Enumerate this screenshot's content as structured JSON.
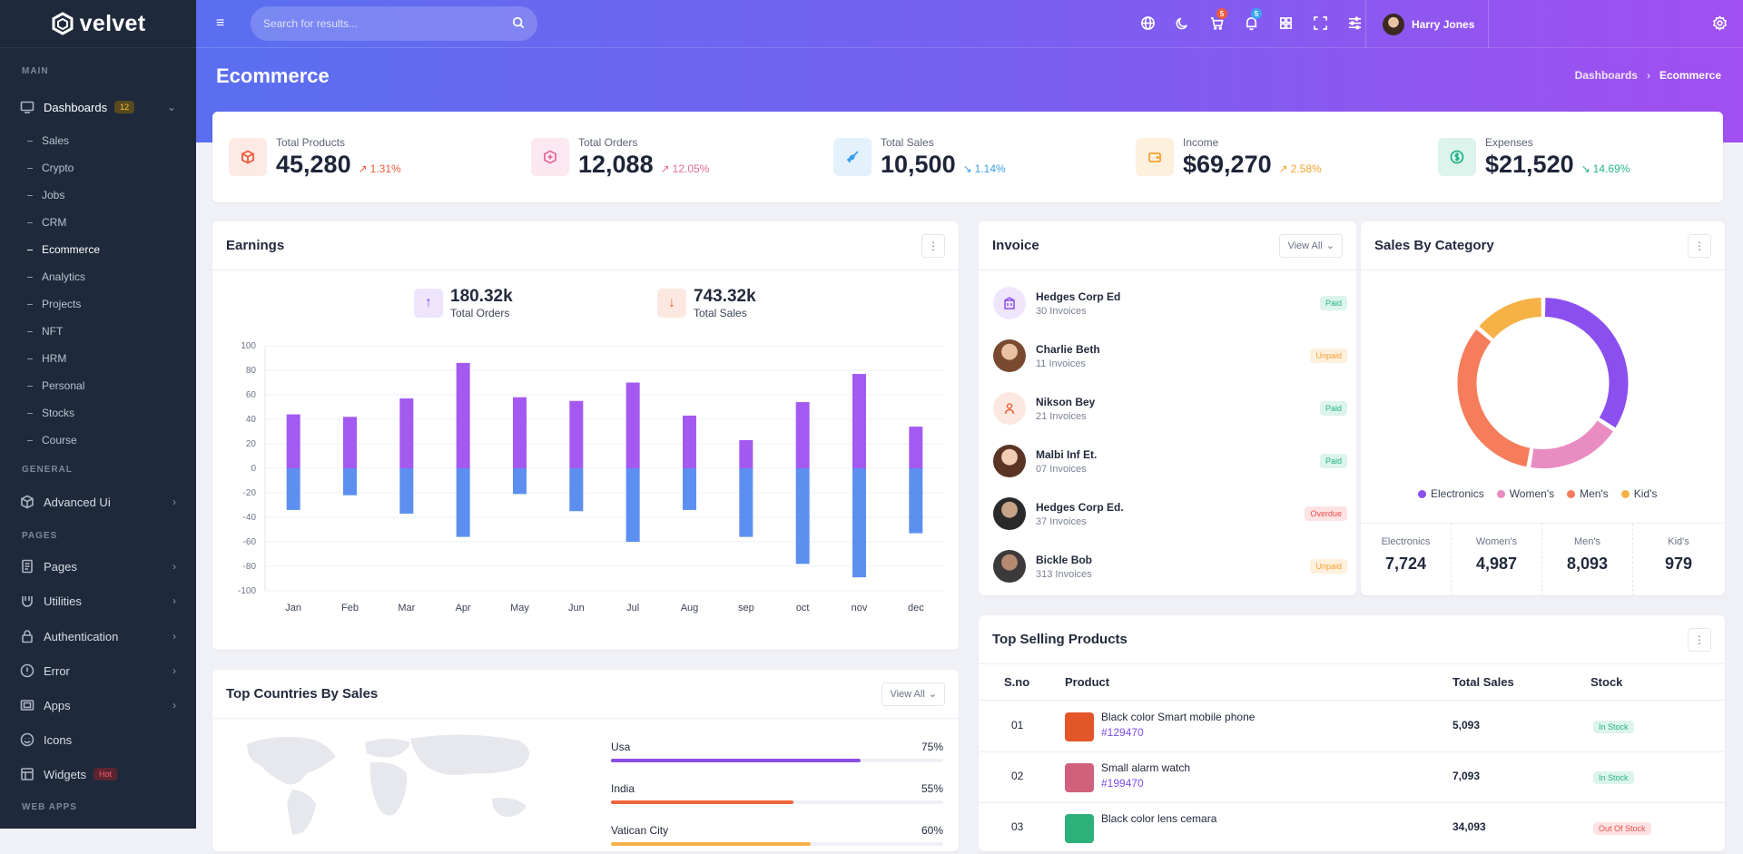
{
  "brand": {
    "name": "velvet"
  },
  "sidebar": {
    "sections": {
      "main": "MAIN",
      "general": "GENERAL",
      "pages": "PAGES",
      "webapps": "WEB APPS"
    },
    "dashboards": {
      "label": "Dashboards",
      "badge": "12"
    },
    "dashboard_subs": [
      "Sales",
      "Crypto",
      "Jobs",
      "CRM",
      "Ecommerce",
      "Analytics",
      "Projects",
      "NFT",
      "HRM",
      "Personal",
      "Stocks",
      "Course"
    ],
    "active_sub": "Ecommerce",
    "general_items": [
      {
        "label": "Advanced Ui",
        "icon": "cube-icon"
      }
    ],
    "page_items": [
      {
        "label": "Pages",
        "icon": "page-icon"
      },
      {
        "label": "Utilities",
        "icon": "utilities-icon"
      },
      {
        "label": "Authentication",
        "icon": "lock-icon"
      },
      {
        "label": "Error",
        "icon": "error-icon"
      },
      {
        "label": "Apps",
        "icon": "apps-icon"
      },
      {
        "label": "Icons",
        "icon": "smile-icon"
      },
      {
        "label": "Widgets",
        "icon": "widgets-icon",
        "badge": "Hot"
      }
    ]
  },
  "header": {
    "search_placeholder": "Search for results...",
    "cart_count": "5",
    "notif_count": "5",
    "user_name": "Harry Jones"
  },
  "page": {
    "title": "Ecommerce",
    "breadcrumb": [
      "Dashboards",
      "Ecommerce"
    ]
  },
  "stats": [
    {
      "label": "Total Products",
      "value": "45,280",
      "change": "1.31%",
      "trend": "up",
      "color": "#f15a3c",
      "icon": "box-icon"
    },
    {
      "label": "Total Orders",
      "value": "12,088",
      "change": "12.05%",
      "trend": "up",
      "color": "#e5699b",
      "icon": "box-plus-icon"
    },
    {
      "label": "Total Sales",
      "value": "10,500",
      "change": "1.14%",
      "trend": "down",
      "color": "#3a9ee8",
      "icon": "rocket-icon"
    },
    {
      "label": "Income",
      "value": "$69,270",
      "change": "2.58%",
      "trend": "up",
      "color": "#f4a230",
      "icon": "wallet-icon"
    },
    {
      "label": "Expenses",
      "value": "$21,520",
      "change": "14.69%",
      "trend": "down",
      "color": "#26b38b",
      "icon": "dollar-icon"
    }
  ],
  "earnings": {
    "title": "Earnings",
    "orders": {
      "value": "180.32k",
      "label": "Total Orders"
    },
    "sales": {
      "value": "743.32k",
      "label": "Total Sales"
    }
  },
  "chart_data": {
    "type": "bar",
    "categories": [
      "Jan",
      "Feb",
      "Mar",
      "Apr",
      "May",
      "Jun",
      "Jul",
      "Aug",
      "sep",
      "oct",
      "nov",
      "dec"
    ],
    "series": [
      {
        "values": [
          44,
          42,
          57,
          86,
          58,
          55,
          70,
          43,
          23,
          54,
          77,
          34
        ],
        "color": "#a45af0"
      },
      {
        "values": [
          -34,
          -22,
          -37,
          -56,
          -21,
          -35,
          -60,
          -34,
          -56,
          -78,
          -89,
          -53
        ],
        "color": "#5d8ff0"
      }
    ],
    "yticks": [
      "100",
      "80",
      "60",
      "40",
      "20",
      "0",
      "-20",
      "-40",
      "-60",
      "-80",
      "-100"
    ],
    "ylim": [
      -100,
      100
    ]
  },
  "invoice": {
    "title": "Invoice",
    "view_all": "View All",
    "rows": [
      {
        "name": "Hedges Corp Ed",
        "count": "30 Invoices",
        "status": "Paid"
      },
      {
        "name": "Charlie Beth",
        "count": "11 Invoices",
        "status": "Unpaid"
      },
      {
        "name": "Nikson Bey",
        "count": "21 Invoices",
        "status": "Paid"
      },
      {
        "name": "Malbi Inf Et.",
        "count": "07 Invoices",
        "status": "Paid"
      },
      {
        "name": "Hedges Corp Ed.",
        "count": "37 Invoices",
        "status": "Overdue"
      },
      {
        "name": "Bickle Bob",
        "count": "313 Invoices",
        "status": "Unpaid"
      }
    ]
  },
  "category": {
    "title": "Sales By Category",
    "items": [
      {
        "label": "Electronics",
        "value": "7,724",
        "share": 34.1,
        "color": "#8b4ff0"
      },
      {
        "label": "Women's",
        "value": "4,987",
        "share": 18.5,
        "color": "#e98cc2"
      },
      {
        "label": "Men's",
        "value": "8,093",
        "share": 33.5,
        "color": "#f57d5c"
      },
      {
        "label": "Kid's",
        "value": "979",
        "share": 13.9,
        "color": "#f6b246"
      }
    ]
  },
  "top_products": {
    "title": "Top Selling Products",
    "headers": [
      "S.no",
      "Product",
      "Total Sales",
      "Stock"
    ],
    "rows": [
      {
        "sno": "01",
        "name": "Black color Smart mobile phone",
        "code": "#129470",
        "sales": "5,093",
        "stock": "In Stock"
      },
      {
        "sno": "02",
        "name": "Small alarm watch",
        "code": "#199470",
        "sales": "7,093",
        "stock": "In Stock"
      },
      {
        "sno": "03",
        "name": "Black color lens cemara",
        "code": "",
        "sales": "34,093",
        "stock": "Out Of Stock"
      }
    ]
  },
  "countries": {
    "title": "Top Countries By Sales",
    "view_all": "View All",
    "rows": [
      {
        "name": "Usa",
        "percent": "75%",
        "fill": 0.75,
        "color": "#8b4fe6"
      },
      {
        "name": "India",
        "percent": "55%",
        "fill": 0.55,
        "color": "#f0643c"
      },
      {
        "name": "Vatican City",
        "percent": "60%",
        "fill": 0.6,
        "color": "#f6b246"
      }
    ]
  }
}
